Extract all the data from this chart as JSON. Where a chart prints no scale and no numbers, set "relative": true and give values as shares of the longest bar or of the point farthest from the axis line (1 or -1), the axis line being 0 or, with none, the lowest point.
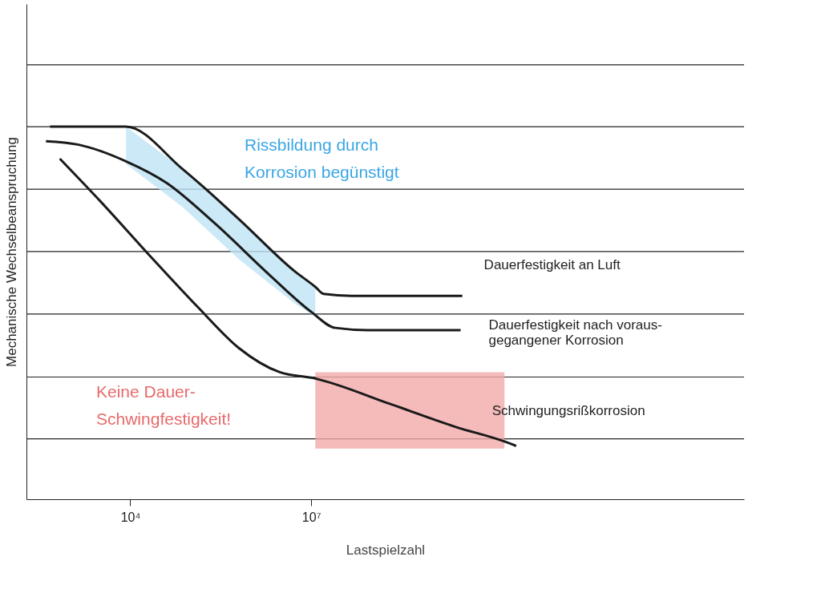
{
  "chart_data": {
    "type": "line",
    "relative": true,
    "log": "x",
    "xlabel": "Lastspielzahl",
    "ylabel": "Mechanische Wechselbeanspruchung",
    "xlim": [
      190,
      150000000000000
    ],
    "xticks": [
      {
        "value": 10000,
        "label": "10⁴"
      },
      {
        "value": 10000000,
        "label": "10⁷"
      }
    ],
    "grid": false,
    "ref_lines": [
      {
        "axis": "y",
        "value": 0.162,
        "color": "#222222"
      },
      {
        "axis": "y",
        "value": 0.328,
        "color": "#222222"
      },
      {
        "axis": "y",
        "value": 0.497,
        "color": "#222222"
      },
      {
        "axis": "y",
        "value": 0.665,
        "color": "#222222"
      },
      {
        "axis": "y",
        "value": 0.832,
        "color": "#222222"
      },
      {
        "axis": "y",
        "value": 1.0,
        "color": "#222222"
      },
      {
        "axis": "y",
        "value": 1.166,
        "color": "#222222"
      }
    ],
    "series": [
      {
        "name": "Dauerfestigkeit an Luft",
        "color": "#1a1a1a",
        "x": [
          468,
          8500,
          74000,
          630000,
          5400000,
          11700000,
          16000000,
          47000000,
          3200000000
        ],
        "values": [
          1.0,
          1.0,
          0.886,
          0.752,
          0.611,
          0.57,
          0.551,
          0.546,
          0.546
        ],
        "upper": [
          null,
          1.0,
          0.886,
          0.752,
          0.611,
          0.57,
          null,
          null,
          null
        ],
        "lower": [
          null,
          0.9,
          0.784,
          0.644,
          0.525,
          0.49,
          null,
          null,
          null
        ]
      },
      {
        "name": "Dauerfestigkeit nach voraus-\ngegangener Korrosion",
        "color": "#1a1a1a",
        "x": [
          400,
          1350,
          8500,
          40000,
          250000,
          2100000,
          10000000,
          25000000,
          85000000,
          3000000000
        ],
        "values": [
          0.961,
          0.952,
          0.907,
          0.849,
          0.741,
          0.6,
          0.503,
          0.46,
          0.454,
          0.454
        ]
      },
      {
        "name": "Schwingungsrißkorrosion",
        "color": "#1a1a1a",
        "x": [
          680,
          3400,
          21000,
          135000,
          630000,
          3000000,
          11700000,
          210000000,
          2500000000,
          16000000000,
          25000000000
        ],
        "values": [
          0.914,
          0.795,
          0.654,
          0.514,
          0.406,
          0.341,
          0.324,
          0.255,
          0.194,
          0.155,
          0.143
        ],
        "upper": [
          null,
          null,
          null,
          null,
          null,
          null,
          0.341,
          0.341,
          0.341,
          0.341,
          null
        ],
        "lower": [
          null,
          null,
          null,
          null,
          null,
          null,
          0.136,
          0.136,
          0.136,
          0.136,
          null
        ]
      }
    ],
    "annotations": [
      "Rissbildung durch\nKorrosion begünstigt",
      "Keine Dauer-\nSchwingfestigkeit!"
    ]
  }
}
